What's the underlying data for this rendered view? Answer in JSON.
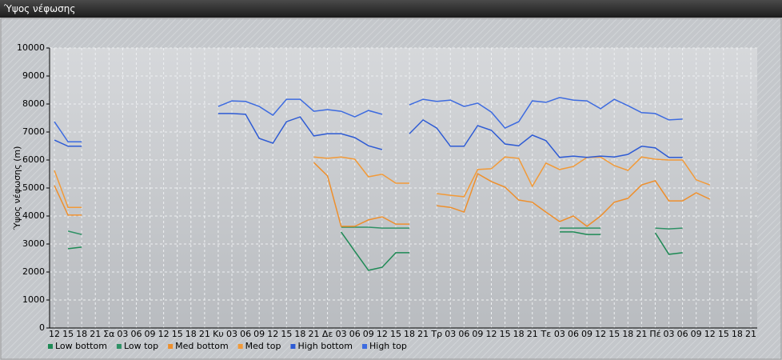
{
  "window_title": "Ύψος νέφωσης",
  "chart_data": {
    "type": "line",
    "ylabel": "Ύψος νέφωσης (m)",
    "categories": [
      "12",
      "15",
      "18",
      "21",
      "Σα",
      "03",
      "06",
      "09",
      "12",
      "15",
      "18",
      "21",
      "Κυ",
      "03",
      "06",
      "09",
      "12",
      "15",
      "18",
      "21",
      "Δε",
      "03",
      "06",
      "09",
      "12",
      "15",
      "18",
      "21",
      "Τρ",
      "03",
      "06",
      "09",
      "12",
      "15",
      "18",
      "21",
      "Τε",
      "03",
      "06",
      "09",
      "12",
      "15",
      "18",
      "21",
      "Πέ",
      "03",
      "06",
      "09",
      "12",
      "15",
      "18",
      "21"
    ],
    "ylim": [
      0,
      10000
    ],
    "yticks": [
      0,
      1000,
      2000,
      3000,
      4000,
      5000,
      6000,
      7000,
      8000,
      9000,
      10000
    ],
    "grid": true,
    "series": [
      {
        "name": "Low bottom",
        "color": "#1e8a55",
        "values": [
          null,
          2830,
          2890,
          null,
          null,
          null,
          null,
          null,
          null,
          null,
          null,
          null,
          null,
          null,
          null,
          null,
          null,
          null,
          null,
          null,
          null,
          3430,
          2740,
          2060,
          2170,
          2690,
          2690,
          null,
          null,
          null,
          null,
          null,
          null,
          null,
          null,
          null,
          null,
          3430,
          3430,
          3340,
          3340,
          null,
          null,
          null,
          3400,
          2630,
          2690,
          null,
          null,
          null,
          null,
          null
        ]
      },
      {
        "name": "Low top",
        "color": "#2e9165",
        "values": [
          null,
          3460,
          3340,
          null,
          null,
          null,
          null,
          null,
          null,
          null,
          null,
          null,
          null,
          null,
          null,
          null,
          null,
          null,
          null,
          null,
          null,
          3600,
          3600,
          3600,
          3570,
          3570,
          3570,
          null,
          null,
          null,
          null,
          null,
          null,
          null,
          null,
          null,
          null,
          3570,
          3570,
          3570,
          3570,
          null,
          null,
          null,
          3570,
          3540,
          3570,
          null,
          null,
          null,
          null,
          null
        ]
      },
      {
        "name": "Med bottom",
        "color": "#ee8f2c",
        "values": [
          5090,
          4030,
          4030,
          null,
          null,
          null,
          null,
          null,
          null,
          null,
          null,
          null,
          null,
          null,
          null,
          null,
          null,
          null,
          null,
          5910,
          5430,
          3630,
          3630,
          3860,
          3970,
          3710,
          3710,
          null,
          4370,
          4310,
          4140,
          5510,
          5230,
          5030,
          4570,
          4490,
          4140,
          3800,
          4000,
          3630,
          4000,
          4490,
          4630,
          5110,
          5260,
          4540,
          4540,
          4830,
          4600,
          null,
          null,
          null
        ]
      },
      {
        "name": "Med top",
        "color": "#f29a38",
        "values": [
          5630,
          4310,
          4310,
          null,
          null,
          null,
          null,
          null,
          null,
          null,
          null,
          null,
          null,
          null,
          null,
          null,
          null,
          null,
          null,
          6110,
          6060,
          6110,
          6030,
          5400,
          5490,
          5170,
          5170,
          null,
          4800,
          4740,
          4690,
          5660,
          5690,
          6110,
          6060,
          5060,
          5890,
          5660,
          5770,
          6090,
          6110,
          5800,
          5630,
          6110,
          6030,
          6000,
          6000,
          5290,
          5110,
          null,
          null,
          null
        ]
      },
      {
        "name": "High bottom",
        "color": "#2e5bd4",
        "values": [
          6710,
          6490,
          6490,
          null,
          null,
          null,
          null,
          null,
          null,
          null,
          null,
          null,
          7660,
          7660,
          7630,
          6770,
          6600,
          7370,
          7540,
          6860,
          6940,
          6940,
          6800,
          6510,
          6370,
          null,
          6940,
          7430,
          7140,
          6490,
          6490,
          7230,
          7060,
          6570,
          6510,
          6890,
          6690,
          6090,
          6140,
          6090,
          6140,
          6110,
          6200,
          6490,
          6430,
          6090,
          6090,
          null,
          null,
          null,
          null,
          null
        ]
      },
      {
        "name": "High top",
        "color": "#3d6be0",
        "values": [
          7370,
          6650,
          6650,
          null,
          null,
          null,
          null,
          null,
          null,
          null,
          null,
          null,
          7910,
          8110,
          8090,
          7910,
          7600,
          8170,
          8170,
          7740,
          7800,
          7740,
          7540,
          7770,
          7630,
          null,
          7970,
          8170,
          8090,
          8140,
          7910,
          8030,
          7710,
          7140,
          7370,
          8110,
          8060,
          8230,
          8140,
          8110,
          7830,
          8170,
          7940,
          7690,
          7660,
          7430,
          7460,
          null,
          null,
          null,
          null,
          null
        ]
      }
    ]
  }
}
